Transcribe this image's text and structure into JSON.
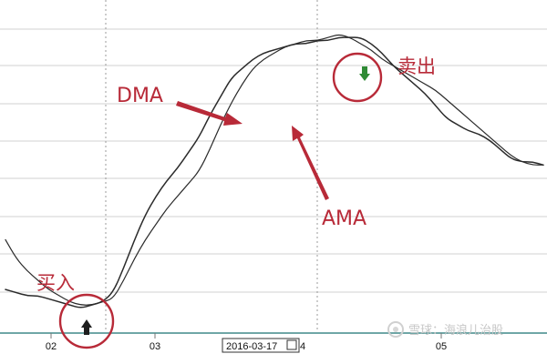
{
  "chart_data": {
    "type": "line",
    "title": "",
    "xlabel": "",
    "ylabel": "",
    "x_ticks": [
      "02",
      "03",
      "2016-03-17",
      "04",
      "05"
    ],
    "cursor_date": "2016-03-17",
    "cursor_suffix": "4",
    "grid": true,
    "legend": "none",
    "xlim": [
      0,
      100
    ],
    "ylim": [
      0,
      100
    ],
    "series": [
      {
        "key": "dma",
        "color": "#2b2b2b",
        "x": [
          0,
          2,
          4,
          6,
          8,
          10,
          12,
          14,
          16,
          18,
          20,
          22,
          24,
          26,
          28,
          30,
          32,
          34,
          36,
          38,
          40,
          42,
          44,
          46,
          48,
          50,
          52,
          54,
          56,
          58,
          60,
          62,
          64,
          66,
          68,
          70,
          72,
          74,
          76,
          78,
          80,
          82,
          84,
          86,
          88,
          90,
          92,
          94,
          96,
          98,
          100
        ],
        "values": [
          14,
          13,
          12,
          12,
          11,
          10,
          9,
          8,
          9,
          10,
          13,
          21,
          30,
          38,
          44,
          49,
          53,
          58,
          63,
          70,
          76,
          82,
          85,
          88,
          90,
          91,
          92,
          93,
          93,
          94,
          94,
          95,
          95,
          95,
          93,
          90,
          86,
          83,
          80,
          77,
          73,
          69,
          67,
          65,
          64,
          62,
          59,
          56,
          55,
          55,
          54
        ]
      },
      {
        "key": "ama",
        "color": "#2b2b2b",
        "x": [
          0,
          2,
          4,
          6,
          8,
          10,
          12,
          14,
          16,
          18,
          20,
          22,
          24,
          26,
          28,
          30,
          32,
          34,
          36,
          38,
          40,
          42,
          44,
          46,
          48,
          50,
          52,
          54,
          56,
          58,
          60,
          62,
          64,
          66,
          68,
          70,
          72,
          74,
          76,
          78,
          80,
          82,
          84,
          86,
          88,
          90,
          92,
          94,
          96,
          98,
          100
        ],
        "values": [
          30,
          24,
          20,
          17,
          14,
          12,
          10,
          9,
          9,
          10,
          11,
          17,
          24,
          30,
          35,
          40,
          44,
          48,
          52,
          59,
          67,
          74,
          80,
          85,
          88,
          90,
          92,
          93,
          94,
          94,
          95,
          96,
          95,
          93,
          91,
          88,
          86,
          84,
          82,
          80,
          78,
          75,
          72,
          69,
          66,
          63,
          60,
          57,
          55,
          54,
          54
        ]
      }
    ]
  },
  "annotations": {
    "dma_label": "DMA",
    "ama_label": "AMA",
    "buy_label": "买入",
    "sell_label": "卖出"
  },
  "watermark": {
    "text": "雪球：海浪儿治股"
  },
  "colors": {
    "annotation_red": "#b82a38",
    "series_line": "#2b2b2b",
    "grid": "#d9d9d9",
    "axis_base": "#6fa6a6",
    "buy_marker": "#1e1e1e",
    "sell_marker": "#2f8a35"
  }
}
